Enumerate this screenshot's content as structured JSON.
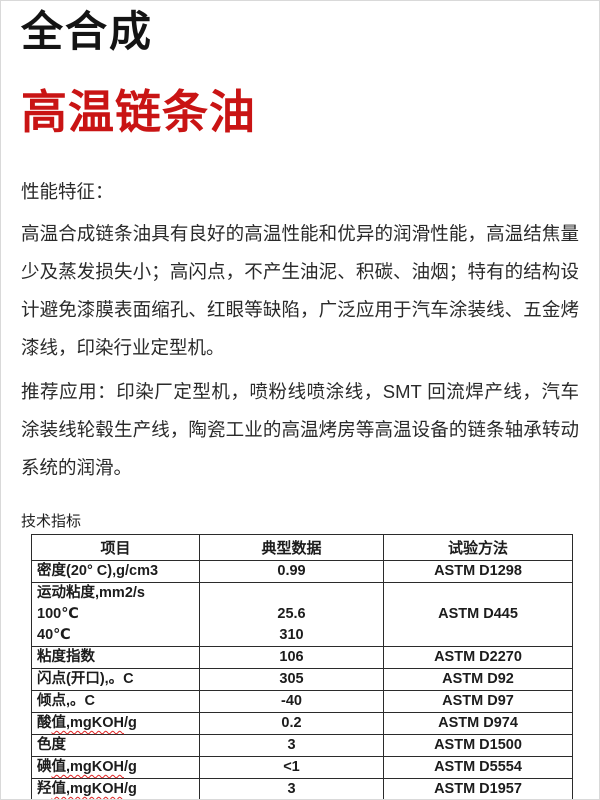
{
  "header": {
    "series": "全合成",
    "product": "高温链条油",
    "accent_color": "#c91414"
  },
  "performance": {
    "label": "性能特征：",
    "text": "高温合成链条油具有良好的高温性能和优异的润滑性能，高温结焦量少及蒸发损失小；高闪点，不产生油泥、积碳、油烟；特有的结构设计避免漆膜表面缩孔、红眼等缺陷，广泛应用于汽车涂装线、五金烤漆线，印染行业定型机。"
  },
  "applications": {
    "text": "推荐应用：印染厂定型机，喷粉线喷涂线，SMT 回流焊产线，汽车涂装线轮毂生产线，陶瓷工业的高温烤房等高温设备的链条轴承转动系统的润滑。"
  },
  "specs": {
    "label": "技术指标",
    "columns": [
      "项目",
      "典型数据",
      "试验方法"
    ],
    "rows": [
      {
        "item": "密度(20° C),g/cm3",
        "value": "0.99",
        "method": "ASTM D1298"
      },
      {
        "item_lines": [
          "运动粘度,mm2/s",
          "100℃",
          "40℃"
        ],
        "value_lines": [
          "",
          "25.6",
          "310"
        ],
        "method": "ASTM D445"
      },
      {
        "item": "粘度指数",
        "value": "106",
        "method": "ASTM D2270"
      },
      {
        "item": "闪点(开口),。C",
        "value": "305",
        "method": "ASTM D92"
      },
      {
        "item": "倾点,。C",
        "value": "-40",
        "method": "ASTM D97"
      },
      {
        "item": "酸值,mgKOH/g",
        "value": "0.2",
        "method": "ASTM D974",
        "wavy": "值,mgKOH"
      },
      {
        "item": "色度",
        "value": "3",
        "method": "ASTM D1500"
      },
      {
        "item": "碘值,mgKOH/g",
        "value": "<1",
        "method": "ASTM D5554",
        "wavy": "值,mgKOH"
      },
      {
        "item": "羟值,mgKOH/g",
        "value": "3",
        "method": "ASTM D1957",
        "wavy": "值,mgKOH"
      }
    ]
  }
}
